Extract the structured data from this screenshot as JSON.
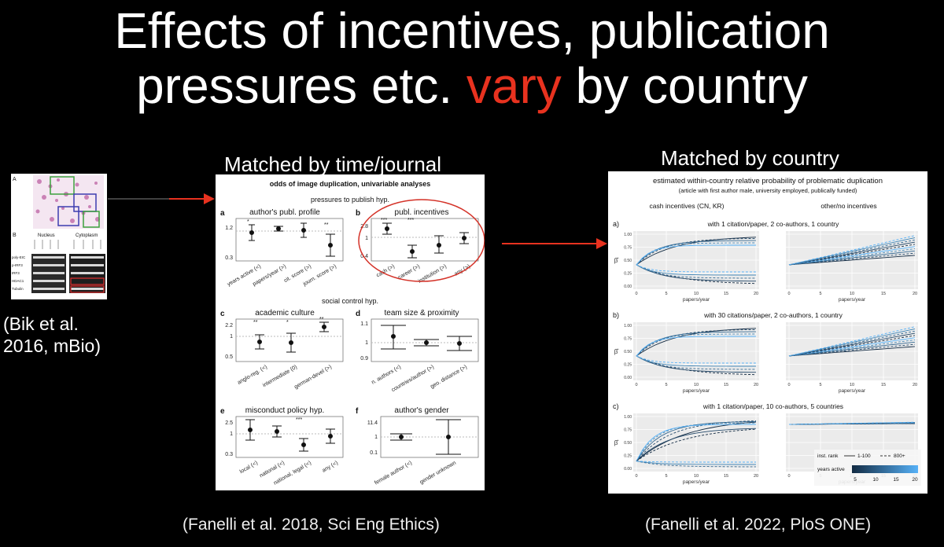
{
  "slide": {
    "title_line1": "Effects of incentives, publication",
    "title_line2_pre": "pressures etc. ",
    "title_line2_highlight": "vary",
    "title_line2_post": " by country",
    "left_label": "Matched by time/journal",
    "right_label": "Matched by country",
    "bik_citation_line1": "(Bik et al.",
    "bik_citation_line2": "2016, mBio)",
    "left_citation": "(Fanelli et al. 2018, Sci Eng Ethics)",
    "right_citation": "(Fanelli et al. 2022, PloS ONE)",
    "colors": {
      "highlight": "#e8321f",
      "arrow": "#e8321f",
      "background": "#000000"
    }
  },
  "bik_figure": {
    "panel_a": "A",
    "panel_b": "B",
    "col_nucleus": "Nucleus",
    "col_cytoplasm": "Cytoplasm",
    "row_labels": [
      "poly-EIC",
      "p-IRF3",
      "IRF3",
      "HDAC1",
      "Tubulin"
    ]
  },
  "left_figure": {
    "title": "odds of image duplication, univariable analyses",
    "section1": "pressures to publish hyp.",
    "section2": "social control hyp.",
    "panels": [
      {
        "letter": "a",
        "title": "author's publ. profile",
        "yticks": [
          "1.2",
          "0.3"
        ],
        "xlabels": [
          "years active (<)",
          "papers/year (>)",
          "cit. score (>)",
          "journ. score (>)"
        ]
      },
      {
        "letter": "b",
        "title": "publ. incentives",
        "yticks": [
          "2.8",
          "1",
          "0.4"
        ],
        "xlabels": [
          "cash (>)",
          "career (>)",
          "institution (>)",
          "any (>)"
        ]
      },
      {
        "letter": "c",
        "title": "academic culture",
        "yticks": [
          "2.2",
          "1",
          "0.5"
        ],
        "xlabels": [
          "anglo-reg. (<)",
          "intermediate (0)",
          "german-devel (>)"
        ]
      },
      {
        "letter": "d",
        "title": "team size & proximity",
        "yticks": [
          "1.1",
          "1",
          "0.9"
        ],
        "xlabels": [
          "n. authors (<)",
          "countries/author (>)",
          "geo. distance (>)"
        ]
      },
      {
        "letter": "e",
        "title": "misconduct policy hyp.",
        "yticks": [
          "2.5",
          "1",
          "0.3"
        ],
        "xlabels": [
          "local (<)",
          "national (<)",
          "national, legal (<)",
          "any (<)"
        ]
      },
      {
        "letter": "f",
        "title": "author's gender",
        "yticks": [
          "11.4",
          "1",
          "0.1"
        ],
        "xlabels": [
          "female author (<)",
          "gender unknown"
        ]
      }
    ]
  },
  "right_figure": {
    "title": "estimated within-country relative probability of problematic duplication",
    "subtitle": "(article with first author male, university employed, publically funded)",
    "col1": "cash incentives (CN, KR)",
    "col2": "other/no incentives",
    "rows": [
      {
        "letter": "a)",
        "title": "with 1 citation/paper, 2 co-authors, 1 country"
      },
      {
        "letter": "b)",
        "title": "with 30 citations/paper, 2 co-authors, 1 country"
      },
      {
        "letter": "c)",
        "title": "with 1 citation/paper, 10 co-authors, 5 countries"
      }
    ],
    "yticks": [
      "1.00",
      "0.75",
      "0.50",
      "0.25",
      "0.00"
    ],
    "xticks": [
      "0",
      "5",
      "10",
      "15",
      "20"
    ],
    "xlabel": "papers/year",
    "ylabel": "β̂",
    "legend": {
      "title": "inst. rank",
      "item1": "1-100",
      "item2": "800+",
      "gradient_title": "years active",
      "gradient_ticks": [
        "5",
        "10",
        "15",
        "20"
      ]
    }
  }
}
